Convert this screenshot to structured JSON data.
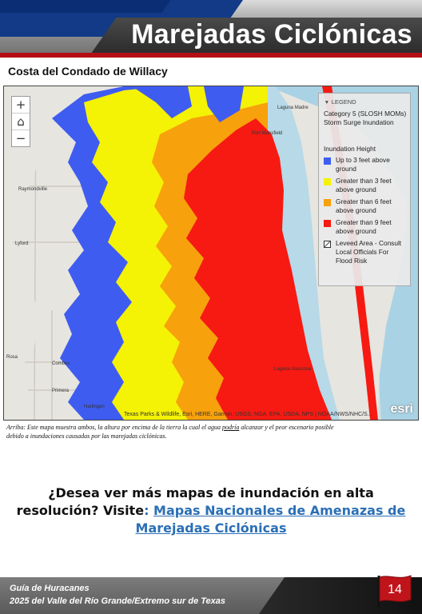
{
  "header": {
    "title": "Marejadas Ciclónicas"
  },
  "map_title": "Costa del Condado de Willacy",
  "map": {
    "zoom_in": "+",
    "home": "⌂",
    "zoom_out": "−",
    "place_labels": [
      "Laguna Madre",
      "Port Mansfield",
      "Raymondville",
      "Lyford",
      "Rosa",
      "Combes",
      "Primera",
      "Harlingen",
      "Laguna Atascosa"
    ],
    "attribution": "Texas Parks & Wildlife, Esri, HERE, Garmin, USGS, NGA, EPA, USDA, NPS | NOAA/NWS/NHC/S...",
    "logo": "esri",
    "colors": {
      "water": "#a9d2e4",
      "land": "#e6e5e0",
      "blue": "#3f5cf0",
      "yellow": "#f4f205",
      "orange": "#f7a10c",
      "red": "#f61a12"
    }
  },
  "legend": {
    "header": "LEGEND",
    "layer": "Category 5 (SLOSH MOMs) Storm Surge Inundation",
    "subtitle": "Inundation Height",
    "items": [
      {
        "label": "Up to 3 feet above ground",
        "color": "#3f5cf0"
      },
      {
        "label": "Greater than 3 feet above ground",
        "color": "#f4f205"
      },
      {
        "label": "Greater than 6 feet above ground",
        "color": "#f7a10c"
      },
      {
        "label": "Greater than 9 feet above ground",
        "color": "#f61a12"
      },
      {
        "label": "Leveed Area - Consult Local Officials For Flood Risk",
        "color": "levee"
      }
    ]
  },
  "caption": {
    "part1": "Arriba: Este mapa muestra ambos, la altura por encima de la tierra la cual el agua ",
    "underlined": "podría",
    "part2": " alcanzar y el peor escenario posible debido a inundaciones causadas por las marejadas ciclónicas."
  },
  "cta": {
    "text": "¿Desea ver más mapas de inundación en alta resolución? Visite",
    "colon": ":",
    "link": "Mapas Nacionales de Amenazas de Marejadas Ciclónicas"
  },
  "footer": {
    "line1": "Guía de Huracanes",
    "line2": "2025 del Valle del Río Grande/Extremo sur de Texas",
    "page": "14"
  }
}
